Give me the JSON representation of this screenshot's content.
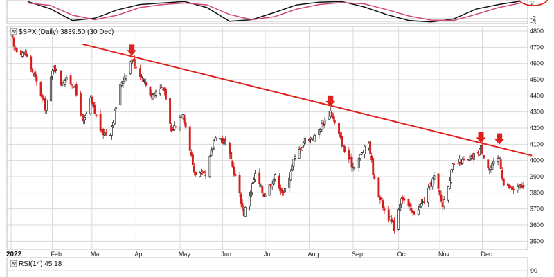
{
  "header": {
    "symbol_label": "$SPX (Daily) 3839.50 (30 Dec)",
    "rsi_label": "RSI(14) 45.18"
  },
  "colors": {
    "up_candle": "#222222",
    "down_candle": "#d41f1f",
    "trendline": "#e0201b",
    "arrow": "#e0201b",
    "osc_black": "#111111",
    "osc_pink": "#d0467a",
    "grid": "#d9d9d9"
  },
  "chart_data": [
    {
      "type": "candlestick",
      "title": "$SPX (Daily) 3839.50 (30 Dec)",
      "xlabel": "",
      "ylabel": "",
      "ylim": [
        3450,
        4830
      ],
      "yticks": [
        3500,
        3600,
        3700,
        3800,
        3900,
        4000,
        4100,
        4200,
        4300,
        4400,
        4500,
        4600,
        4700,
        4800
      ],
      "xticks": [
        {
          "label": "2022",
          "date": "2022-01-03",
          "bold": true
        },
        {
          "label": "Feb",
          "date": "2022-02-01"
        },
        {
          "label": "Mar",
          "date": "2022-03-01"
        },
        {
          "label": "Apr",
          "date": "2022-04-01"
        },
        {
          "label": "May",
          "date": "2022-05-02"
        },
        {
          "label": "Jun",
          "date": "2022-06-01"
        },
        {
          "label": "Jul",
          "date": "2022-07-01"
        },
        {
          "label": "Aug",
          "date": "2022-08-01"
        },
        {
          "label": "Sep",
          "date": "2022-09-01"
        },
        {
          "label": "Oct",
          "date": "2022-10-03"
        },
        {
          "label": "Nov",
          "date": "2022-11-01"
        },
        {
          "label": "Dec",
          "date": "2022-12-01"
        }
      ],
      "grid": true,
      "legend": "none",
      "close_path": [
        [
          "2022-01-03",
          4796
        ],
        [
          "2022-01-05",
          4700
        ],
        [
          "2022-01-10",
          4670
        ],
        [
          "2022-01-13",
          4660
        ],
        [
          "2022-01-19",
          4530
        ],
        [
          "2022-01-24",
          4410
        ],
        [
          "2022-01-27",
          4330
        ],
        [
          "2022-02-02",
          4590
        ],
        [
          "2022-02-07",
          4480
        ],
        [
          "2022-02-10",
          4500
        ],
        [
          "2022-02-16",
          4475
        ],
        [
          "2022-02-23",
          4230
        ],
        [
          "2022-02-28",
          4370
        ],
        [
          "2022-03-08",
          4170
        ],
        [
          "2022-03-14",
          4175
        ],
        [
          "2022-03-21",
          4460
        ],
        [
          "2022-03-29",
          4630
        ],
        [
          "2022-04-05",
          4520
        ],
        [
          "2022-04-12",
          4400
        ],
        [
          "2022-04-20",
          4460
        ],
        [
          "2022-04-26",
          4180
        ],
        [
          "2022-05-04",
          4300
        ],
        [
          "2022-05-12",
          3930
        ],
        [
          "2022-05-20",
          3900
        ],
        [
          "2022-05-27",
          4160
        ],
        [
          "2022-06-03",
          4110
        ],
        [
          "2022-06-10",
          3900
        ],
        [
          "2022-06-16",
          3670
        ],
        [
          "2022-06-24",
          3910
        ],
        [
          "2022-06-30",
          3790
        ],
        [
          "2022-07-08",
          3900
        ],
        [
          "2022-07-14",
          3790
        ],
        [
          "2022-07-21",
          3998
        ],
        [
          "2022-07-29",
          4130
        ],
        [
          "2022-08-05",
          4145
        ],
        [
          "2022-08-16",
          4305
        ],
        [
          "2022-08-19",
          4230
        ],
        [
          "2022-08-26",
          4060
        ],
        [
          "2022-09-01",
          3960
        ],
        [
          "2022-09-12",
          4110
        ],
        [
          "2022-09-16",
          3870
        ],
        [
          "2022-09-23",
          3695
        ],
        [
          "2022-09-30",
          3585
        ],
        [
          "2022-10-05",
          3780
        ],
        [
          "2022-10-13",
          3670
        ],
        [
          "2022-10-21",
          3750
        ],
        [
          "2022-10-28",
          3900
        ],
        [
          "2022-11-03",
          3720
        ],
        [
          "2022-11-10",
          3960
        ],
        [
          "2022-11-15",
          3990
        ],
        [
          "2022-11-22",
          4000
        ],
        [
          "2022-11-30",
          4080
        ],
        [
          "2022-12-06",
          3940
        ],
        [
          "2022-12-13",
          4020
        ],
        [
          "2022-12-16",
          3850
        ],
        [
          "2022-12-22",
          3820
        ],
        [
          "2022-12-30",
          3839
        ]
      ],
      "trendline": {
        "from": [
          "2022-02-22",
          4720
        ],
        "to": [
          "2023-01-05",
          4030
        ]
      },
      "arrows": [
        {
          "date": "2022-03-29",
          "value": 4640
        },
        {
          "date": "2022-08-16",
          "value": 4325
        },
        {
          "date": "2022-11-30",
          "value": 4100
        },
        {
          "date": "2022-12-13",
          "value": 4090
        }
      ]
    },
    {
      "type": "line",
      "title": "",
      "ylim": [
        -3,
        2
      ],
      "yticks": [
        2,
        -2,
        -3
      ],
      "series": [
        {
          "color": "#111111",
          "values": [
            2.4,
            0.5,
            -2.6,
            -2.0,
            0.2,
            1.6,
            2.0,
            2.4,
            0.8,
            -2.8,
            -2.4,
            -0.5,
            1.5,
            2.2,
            2.4,
            1.0,
            -1.0,
            -2.6,
            -3.0,
            -2.2,
            0.4,
            1.6,
            2.5
          ]
        },
        {
          "color": "#d0467a",
          "values": [
            2.0,
            1.4,
            -1.2,
            -2.4,
            -1.2,
            0.8,
            1.6,
            2.0,
            1.5,
            -1.0,
            -2.4,
            -1.6,
            0.4,
            1.6,
            2.1,
            1.8,
            0.3,
            -1.4,
            -2.5,
            -2.6,
            -1.0,
            0.8,
            2.0
          ]
        }
      ]
    }
  ],
  "rsi_panel": {
    "label": "RSI(14) 45.18",
    "visible_tick": "90"
  }
}
